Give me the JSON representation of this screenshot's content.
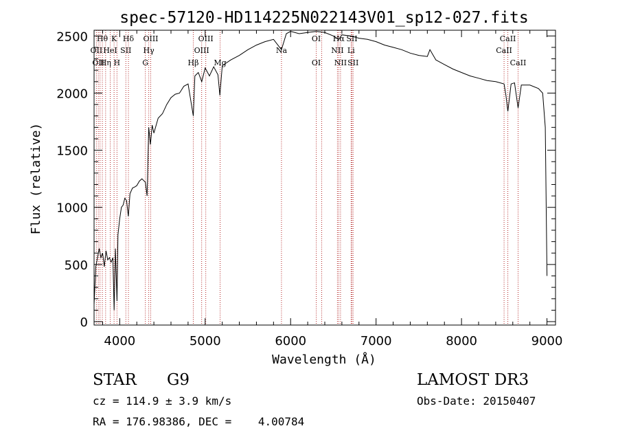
{
  "chart_data": {
    "type": "line",
    "title": "spec-57120-HD114225N022143V01_sp12-027.fits",
    "xlabel": "Wavelength (Å)",
    "ylabel": "Flux (relative)",
    "xlim": [
      3700,
      9100
    ],
    "ylim": [
      -30,
      2550
    ],
    "x_ticks": [
      4000,
      5000,
      6000,
      7000,
      8000,
      9000
    ],
    "y_ticks": [
      0,
      500,
      1000,
      1500,
      2000,
      2500
    ],
    "grid": false,
    "series": [
      {
        "x": [
          3700,
          3720,
          3740,
          3760,
          3780,
          3800,
          3820,
          3840,
          3860,
          3880,
          3900,
          3920,
          3935,
          3950,
          3968,
          3980,
          4000,
          4020,
          4040,
          4060,
          4080,
          4101,
          4120,
          4150,
          4180,
          4200,
          4230,
          4260,
          4300,
          4320,
          4340,
          4360,
          4380,
          4400,
          4450,
          4500,
          4550,
          4600,
          4650,
          4700,
          4750,
          4800,
          4861,
          4880,
          4920,
          4960,
          5000,
          5050,
          5100,
          5150,
          5172,
          5200,
          5300,
          5400,
          5500,
          5600,
          5700,
          5800,
          5893,
          5950,
          6000,
          6100,
          6200,
          6300,
          6400,
          6500,
          6563,
          6600,
          6700,
          6800,
          6900,
          7000,
          7100,
          7200,
          7300,
          7400,
          7500,
          7600,
          7630,
          7700,
          7800,
          7900,
          8000,
          8100,
          8200,
          8300,
          8400,
          8498,
          8520,
          8542,
          8580,
          8620,
          8662,
          8700,
          8800,
          8900,
          8950,
          8980,
          9000
        ],
        "y": [
          150,
          480,
          560,
          640,
          560,
          600,
          480,
          620,
          540,
          560,
          520,
          560,
          100,
          640,
          180,
          760,
          900,
          1000,
          1020,
          1080,
          1060,
          920,
          1120,
          1170,
          1180,
          1190,
          1230,
          1250,
          1220,
          1100,
          1700,
          1550,
          1720,
          1650,
          1780,
          1820,
          1900,
          1960,
          1990,
          2000,
          2060,
          2080,
          1800,
          2150,
          2180,
          2100,
          2220,
          2150,
          2230,
          2160,
          1980,
          2240,
          2290,
          2330,
          2380,
          2420,
          2450,
          2470,
          2380,
          2520,
          2540,
          2520,
          2530,
          2540,
          2530,
          2500,
          2470,
          2510,
          2500,
          2480,
          2470,
          2450,
          2420,
          2400,
          2380,
          2350,
          2330,
          2320,
          2380,
          2290,
          2250,
          2210,
          2180,
          2150,
          2130,
          2110,
          2100,
          2080,
          1980,
          1840,
          2080,
          2090,
          1870,
          2070,
          2070,
          2040,
          2000,
          1700,
          400
        ],
        "color": "#000000"
      }
    ],
    "lines": [
      {
        "wavelength": 3727,
        "rows": [
          "",
          "OII",
          ""
        ]
      },
      {
        "wavelength": 3750,
        "rows": [
          "",
          "",
          "OII"
        ]
      },
      {
        "wavelength": 3770,
        "rows": [
          "",
          "",
          ""
        ]
      },
      {
        "wavelength": 3797,
        "rows": [
          "Hθ",
          "",
          ""
        ]
      },
      {
        "wavelength": 3835,
        "rows": [
          "",
          "",
          "Hη"
        ]
      },
      {
        "wavelength": 3889,
        "rows": [
          "",
          "HeI",
          ""
        ]
      },
      {
        "wavelength": 3934,
        "rows": [
          "K",
          "",
          ""
        ]
      },
      {
        "wavelength": 3968,
        "rows": [
          "",
          "",
          "H"
        ]
      },
      {
        "wavelength": 4072,
        "rows": [
          "",
          "SII",
          ""
        ]
      },
      {
        "wavelength": 4102,
        "rows": [
          "Hδ",
          "",
          ""
        ]
      },
      {
        "wavelength": 4300,
        "rows": [
          "",
          "",
          "G"
        ]
      },
      {
        "wavelength": 4340,
        "rows": [
          "",
          "Hγ",
          ""
        ]
      },
      {
        "wavelength": 4363,
        "rows": [
          "OIII",
          "",
          ""
        ]
      },
      {
        "wavelength": 4861,
        "rows": [
          "",
          "",
          "Hβ"
        ]
      },
      {
        "wavelength": 4959,
        "rows": [
          "",
          "OIII",
          ""
        ]
      },
      {
        "wavelength": 5007,
        "rows": [
          "OIII",
          "",
          ""
        ]
      },
      {
        "wavelength": 5175,
        "rows": [
          "",
          "",
          "Mg"
        ]
      },
      {
        "wavelength": 5893,
        "rows": [
          "",
          "Na",
          ""
        ]
      },
      {
        "wavelength": 6300,
        "rows": [
          "OI",
          "",
          "OI"
        ]
      },
      {
        "wavelength": 6364,
        "rows": [
          "",
          "",
          ""
        ]
      },
      {
        "wavelength": 6548,
        "rows": [
          "",
          "NII",
          ""
        ]
      },
      {
        "wavelength": 6563,
        "rows": [
          "Hα",
          "",
          ""
        ]
      },
      {
        "wavelength": 6584,
        "rows": [
          "",
          "",
          "NII"
        ]
      },
      {
        "wavelength": 6708,
        "rows": [
          "",
          "Li",
          ""
        ]
      },
      {
        "wavelength": 6717,
        "rows": [
          "SII",
          "",
          ""
        ]
      },
      {
        "wavelength": 6731,
        "rows": [
          "",
          "",
          "SII"
        ]
      },
      {
        "wavelength": 8498,
        "rows": [
          "",
          "CaII",
          ""
        ]
      },
      {
        "wavelength": 8542,
        "rows": [
          "CaII",
          "",
          ""
        ]
      },
      {
        "wavelength": 8662,
        "rows": [
          "",
          "",
          "CaII"
        ]
      }
    ]
  },
  "footer": {
    "object_type": "STAR",
    "subclass": "G9",
    "cz": "cz = 114.9 ± 3.9 km/s",
    "coords": "RA = 176.98386, DEC =    4.00784",
    "survey": "LAMOST DR3",
    "obs_date": "Obs-Date: 20150407"
  }
}
